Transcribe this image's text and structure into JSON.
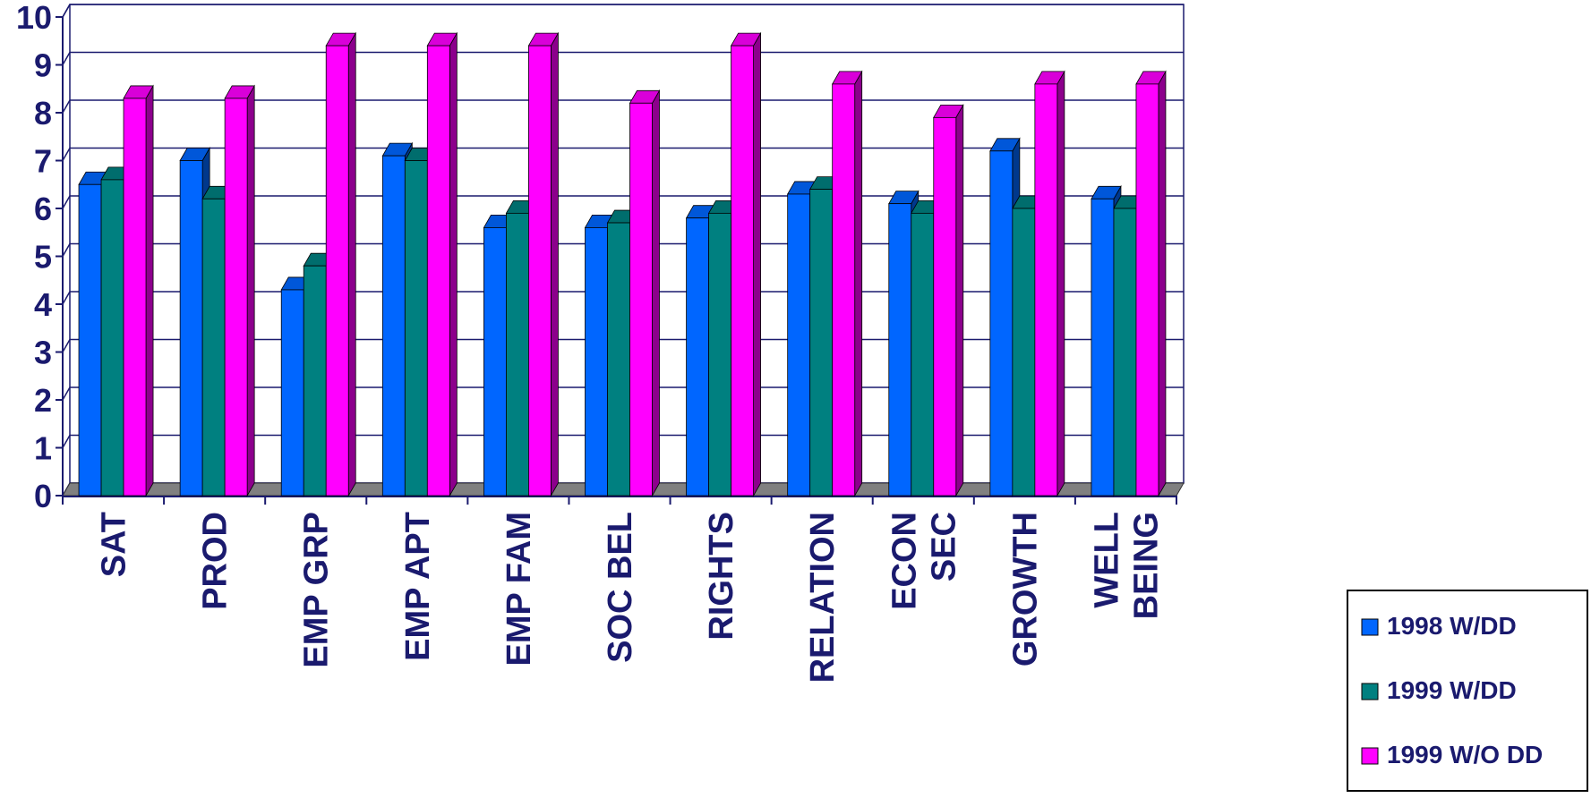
{
  "chart_data": {
    "type": "bar",
    "title": "",
    "xlabel": "",
    "ylabel": "",
    "ylim": [
      0,
      10
    ],
    "yticks": [
      "0",
      "1",
      "2",
      "3",
      "4",
      "5",
      "6",
      "7",
      "8",
      "9",
      "10"
    ],
    "grid": true,
    "legend_position": "bottom-right",
    "categories": [
      [
        "SAT"
      ],
      [
        "PROD"
      ],
      [
        "EMP GRP"
      ],
      [
        "EMP APT"
      ],
      [
        "EMP FAM"
      ],
      [
        "SOC BEL"
      ],
      [
        "RIGHTS"
      ],
      [
        "RELATION"
      ],
      [
        "ECON",
        "SEC"
      ],
      [
        "GROWTH"
      ],
      [
        "WELL",
        "BEING"
      ]
    ],
    "series": [
      {
        "name": "1998 W/DD",
        "color": "#0066ff",
        "values": [
          6.5,
          7.0,
          4.3,
          7.1,
          5.6,
          5.6,
          5.8,
          6.3,
          6.1,
          7.2,
          6.2
        ]
      },
      {
        "name": "1999 W/DD",
        "color": "#008080",
        "values": [
          6.6,
          6.2,
          4.8,
          7.0,
          5.9,
          5.7,
          5.9,
          6.4,
          5.9,
          6.0,
          6.0
        ]
      },
      {
        "name": "1999 W/O DD",
        "color": "#ff00ff",
        "values": [
          8.3,
          8.3,
          9.4,
          9.4,
          9.4,
          8.2,
          9.4,
          8.6,
          7.9,
          8.6,
          8.6
        ]
      }
    ],
    "colors": {
      "axis": "#1a1a6e",
      "floor": "#808080",
      "plot_background": "#ffffff",
      "tick_text": "#1a1a6e"
    }
  }
}
